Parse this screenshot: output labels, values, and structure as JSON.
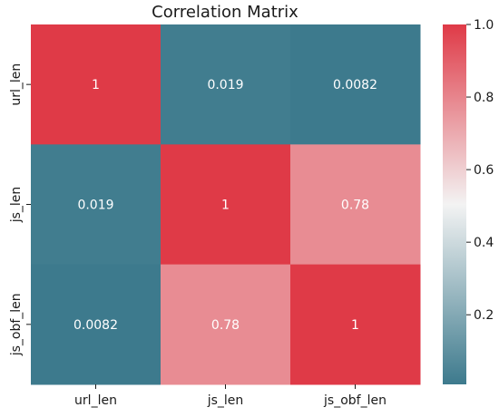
{
  "chart_data": {
    "type": "heatmap",
    "title": "Correlation Matrix",
    "x_labels": [
      "url_len",
      "js_len",
      "js_obf_len"
    ],
    "y_labels": [
      "url_len",
      "js_len",
      "js_obf_len"
    ],
    "values": [
      [
        1,
        0.019,
        0.0082
      ],
      [
        0.019,
        1,
        0.78
      ],
      [
        0.0082,
        0.78,
        1
      ]
    ],
    "annotations": [
      [
        "1",
        "0.019",
        "0.0082"
      ],
      [
        "0.019",
        "1",
        "0.78"
      ],
      [
        "0.0082",
        "0.78",
        "1"
      ]
    ],
    "colorbar": {
      "range": [
        0.0082,
        1
      ],
      "ticks": [
        0.2,
        0.4,
        0.6,
        0.8,
        1.0
      ],
      "tick_labels": [
        "0.2",
        "0.4",
        "0.6",
        "0.8",
        "1.0"
      ],
      "colormap": "diverging teal-white-red",
      "low_color": "#3d7a8d",
      "mid_color": "#f3f3f3",
      "high_color": "#df3a47"
    },
    "grid": false,
    "legend": "colorbar-right"
  }
}
